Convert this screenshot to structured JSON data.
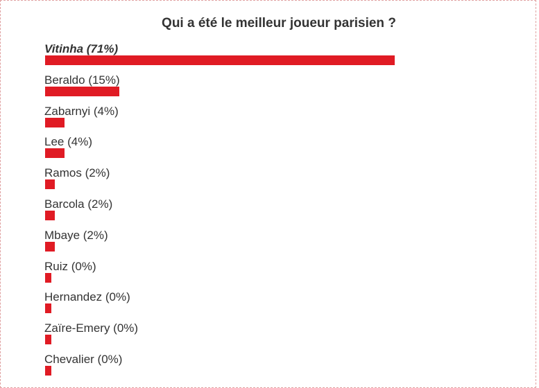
{
  "poll": {
    "title": "Qui a été le meilleur joueur parisien ?",
    "bar_color": "#e01b24",
    "options": [
      {
        "label": "Vitinha (71%)",
        "percent": 71,
        "winner": true
      },
      {
        "label": "Beraldo (15%)",
        "percent": 15,
        "winner": false
      },
      {
        "label": "Zabarnyi (4%)",
        "percent": 4,
        "winner": false
      },
      {
        "label": "Lee (4%)",
        "percent": 4,
        "winner": false
      },
      {
        "label": "Ramos (2%)",
        "percent": 2,
        "winner": false
      },
      {
        "label": "Barcola (2%)",
        "percent": 2,
        "winner": false
      },
      {
        "label": "Mbaye (2%)",
        "percent": 2,
        "winner": false
      },
      {
        "label": "Ruiz (0%)",
        "percent": 0,
        "winner": false
      },
      {
        "label": "Hernandez (0%)",
        "percent": 0,
        "winner": false
      },
      {
        "label": "Zaïre-Emery (0%)",
        "percent": 0,
        "winner": false
      },
      {
        "label": "Chevalier (0%)",
        "percent": 0,
        "winner": false
      }
    ]
  }
}
